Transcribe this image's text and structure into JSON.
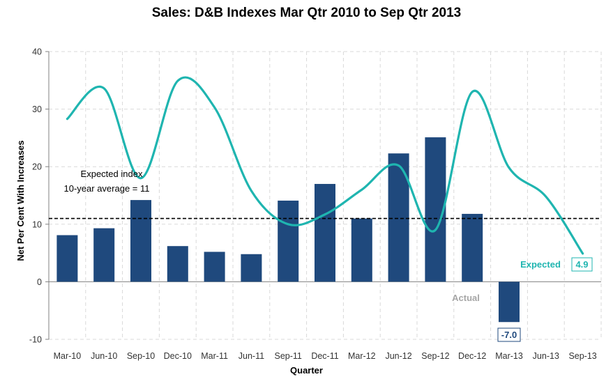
{
  "chart_data": {
    "type": "bar",
    "title": "Sales: D&B Indexes Mar Qtr 2010 to Sep Qtr 2013",
    "xlabel": "Quarter",
    "ylabel": "Net Per Cent With Increases",
    "ylim": [
      -10,
      40
    ],
    "yticks": [
      -10,
      0,
      10,
      20,
      30,
      40
    ],
    "grid": true,
    "categories": [
      "Mar-10",
      "Jun-10",
      "Sep-10",
      "Dec-10",
      "Mar-11",
      "Jun-11",
      "Sep-11",
      "Dec-11",
      "Mar-12",
      "Jun-12",
      "Sep-12",
      "Dec-12",
      "Mar-13",
      "Jun-13",
      "Sep-13"
    ],
    "series": [
      {
        "name": "Actual",
        "kind": "bar",
        "color": "#1f497d",
        "values": [
          8.1,
          9.3,
          14.2,
          6.2,
          5.2,
          4.8,
          14.1,
          17.0,
          11.0,
          22.3,
          25.1,
          11.8,
          -7.0,
          null,
          null
        ]
      },
      {
        "name": "Expected",
        "kind": "line",
        "color": "#1fb5b0",
        "values": [
          28.3,
          33.6,
          18.0,
          34.9,
          30.3,
          15.8,
          10.0,
          11.7,
          16.0,
          20.2,
          9.0,
          33.0,
          19.8,
          14.8,
          4.9
        ]
      }
    ],
    "reference_line": {
      "value": 11,
      "style": "dashed",
      "label_line1": "Expected index",
      "label_line2": "10-year average = 11"
    },
    "series_labels": {
      "actual": "Actual",
      "expected": "Expected"
    },
    "value_callouts": {
      "actual_last": "-7.0",
      "expected_last": "4.9"
    }
  }
}
